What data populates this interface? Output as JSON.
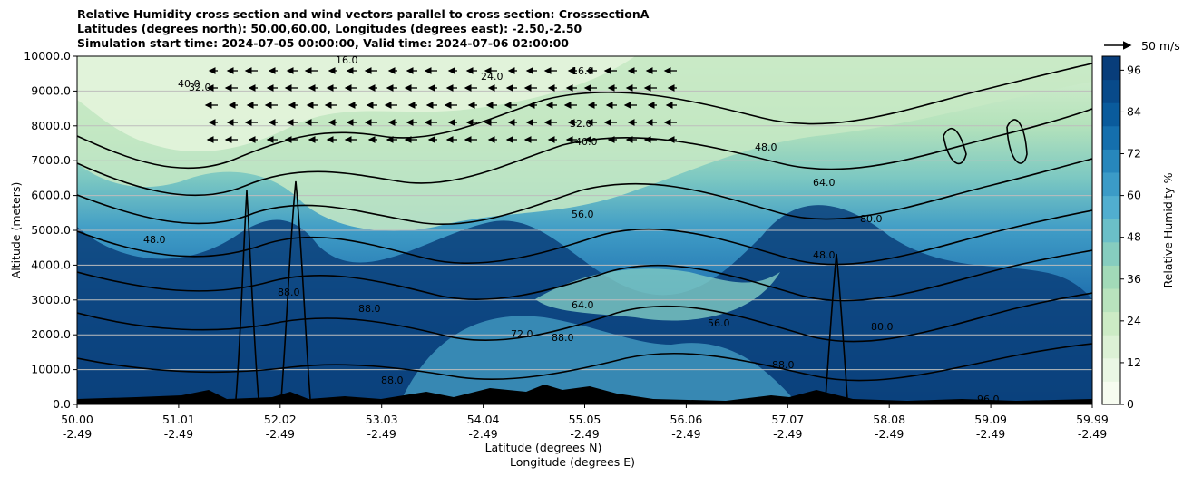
{
  "chart_data": {
    "type": "heatmap",
    "title_lines": [
      "Relative Humidity cross section and wind vectors parallel to cross section: CrosssectionA",
      "Latitudes (degrees north): 50.00,60.00, Longitudes (degrees east): -2.50,-2.50",
      "Simulation start time: 2024-07-05 00:00:00, Valid time: 2024-07-06 02:00:00"
    ],
    "ylabel": "Altitude (meters)",
    "xlabel_lines": [
      "Latitude (degrees N)",
      "Longitude (degrees E)"
    ],
    "ylim": [
      0,
      10000
    ],
    "y_ticks": [
      "0.0",
      "1000.0",
      "2000.0",
      "3000.0",
      "4000.0",
      "5000.0",
      "6000.0",
      "7000.0",
      "8000.0",
      "9000.0",
      "10000.0"
    ],
    "x_ticks": [
      {
        "lat": "50.00",
        "lon": "-2.49"
      },
      {
        "lat": "51.01",
        "lon": "-2.49"
      },
      {
        "lat": "52.02",
        "lon": "-2.49"
      },
      {
        "lat": "53.03",
        "lon": "-2.49"
      },
      {
        "lat": "54.04",
        "lon": "-2.49"
      },
      {
        "lat": "55.05",
        "lon": "-2.49"
      },
      {
        "lat": "56.06",
        "lon": "-2.49"
      },
      {
        "lat": "57.07",
        "lon": "-2.49"
      },
      {
        "lat": "58.08",
        "lon": "-2.49"
      },
      {
        "lat": "59.09",
        "lon": "-2.49"
      },
      {
        "lat": "59.99",
        "lon": "-2.49"
      }
    ],
    "grid": "horizontal",
    "colorbar": {
      "label": "Relative Humidity %",
      "range": [
        0,
        100
      ],
      "ticks": [
        "0",
        "12",
        "24",
        "36",
        "48",
        "60",
        "72",
        "84",
        "96"
      ],
      "colormap": "GnBu"
    },
    "quiver_key": "50 m/s",
    "contour_labels": [
      "16.0",
      "24.0",
      "32.0",
      "40.0",
      "48.0",
      "56.0",
      "64.0",
      "72.0",
      "80.0",
      "88.0",
      "96.0"
    ]
  }
}
